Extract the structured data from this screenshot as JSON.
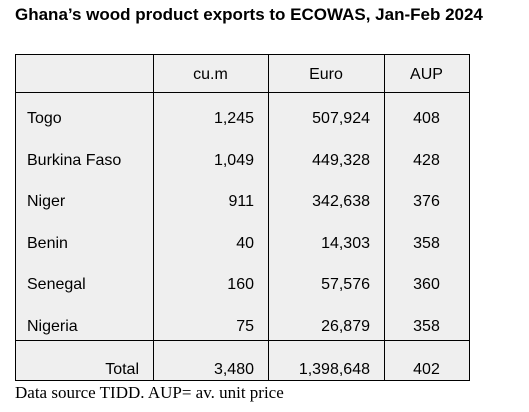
{
  "title": "Ghana’s wood product exports to ECOWAS, Jan-Feb 2024",
  "table": {
    "headers": [
      "cu.m",
      "Euro",
      "AUP"
    ],
    "rows": [
      [
        "Togo",
        "1,245",
        "507,924",
        "408"
      ],
      [
        "Burkina Faso",
        "1,049",
        "449,328",
        "428"
      ],
      [
        "Niger",
        "911",
        "342,638",
        "376"
      ],
      [
        "Benin",
        "40",
        "14,303",
        "358"
      ],
      [
        "Senegal",
        "160",
        "57,576",
        "360"
      ],
      [
        "Nigeria",
        "75",
        "26,879",
        "358"
      ]
    ],
    "total": [
      "Total",
      "3,480",
      "1,398,648",
      "402"
    ]
  },
  "note": "Data source TIDD. AUP= av. unit price"
}
